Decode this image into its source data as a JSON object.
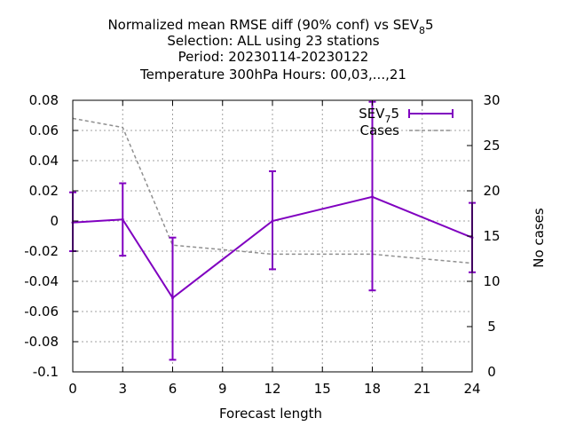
{
  "chart_data": {
    "type": "line",
    "title_lines": [
      "Normalized mean RMSE diff (90% conf) vs SEV",
      "Selection: ALL using    23 stations",
      "Period: 20230114-20230122",
      "Temperature 300hPa   Hours:  00,03,...,21"
    ],
    "title_sub": "8",
    "title_tail": "5",
    "xlabel": "Forecast length",
    "ylabel": "",
    "y2label": "No cases",
    "xlim": [
      0,
      24
    ],
    "ylim": [
      -0.1,
      0.08
    ],
    "y2lim": [
      0,
      30
    ],
    "xticks": [
      "0",
      "3",
      "6",
      "9",
      "12",
      "15",
      "18",
      "21",
      "24"
    ],
    "yticks": [
      "-0.1",
      "-0.08",
      "-0.06",
      "-0.04",
      "-0.02",
      "0",
      "0.02",
      "0.04",
      "0.06",
      "0.08"
    ],
    "y2ticks": [
      "0",
      "5",
      "10",
      "15",
      "20",
      "25",
      "30"
    ],
    "grid": true,
    "legend_position": "top-right",
    "series": [
      {
        "name": "SEV",
        "name_sub": "7",
        "name_tail": "5",
        "color": "#8000c0",
        "axis": "y1",
        "x": [
          0,
          3,
          6,
          12,
          18,
          24
        ],
        "y": [
          -0.001,
          0.001,
          -0.051,
          0.0,
          0.016,
          -0.011
        ],
        "err_low": [
          -0.02,
          -0.023,
          -0.092,
          -0.032,
          -0.046,
          -0.034
        ],
        "err_high": [
          0.019,
          0.025,
          -0.011,
          0.033,
          0.079,
          0.012
        ]
      },
      {
        "name": "Cases",
        "color": "#909090",
        "axis": "y2",
        "x": [
          0,
          3,
          6,
          9,
          12,
          15,
          18,
          21,
          24
        ],
        "y": [
          28,
          27,
          14,
          13.5,
          13,
          13,
          13,
          12.5,
          12
        ]
      }
    ]
  }
}
